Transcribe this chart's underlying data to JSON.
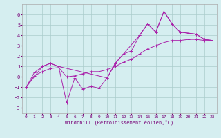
{
  "xlabel": "Windchill (Refroidissement éolien,°C)",
  "ylabel": "",
  "background_color": "#d5eef0",
  "grid_color": "#aacccc",
  "line_color": "#aa22aa",
  "xlim": [
    -0.5,
    23.5
  ],
  "ylim": [
    -3.5,
    7.0
  ],
  "xticks": [
    0,
    1,
    2,
    3,
    4,
    5,
    6,
    7,
    8,
    9,
    10,
    11,
    12,
    13,
    14,
    15,
    16,
    17,
    18,
    19,
    20,
    21,
    22,
    23
  ],
  "yticks": [
    -3,
    -2,
    -1,
    0,
    1,
    2,
    3,
    4,
    5,
    6
  ],
  "line1": {
    "x": [
      0,
      1,
      2,
      3,
      4,
      5,
      6,
      7,
      8,
      9,
      10,
      11,
      12,
      13,
      14,
      15,
      16,
      17,
      18,
      19,
      20,
      21,
      22,
      23
    ],
    "y": [
      -1.0,
      0.4,
      1.0,
      1.3,
      1.0,
      -2.5,
      -0.1,
      -1.2,
      -0.9,
      -1.1,
      -0.1,
      1.3,
      2.2,
      2.5,
      4.0,
      5.1,
      4.3,
      6.3,
      5.1,
      4.3,
      4.2,
      4.1,
      3.6,
      3.5
    ]
  },
  "line2": {
    "x": [
      0,
      2,
      3,
      4,
      10,
      11,
      14,
      15,
      16,
      17,
      18,
      19,
      20,
      21,
      22,
      23
    ],
    "y": [
      -1.0,
      1.0,
      1.3,
      1.0,
      -0.1,
      1.3,
      4.0,
      5.1,
      4.3,
      6.3,
      5.1,
      4.3,
      4.2,
      4.1,
      3.6,
      3.5
    ]
  },
  "line3": {
    "x": [
      0,
      1,
      2,
      3,
      4,
      5,
      6,
      7,
      8,
      9,
      10,
      11,
      12,
      13,
      14,
      15,
      16,
      17,
      18,
      19,
      20,
      21,
      22,
      23
    ],
    "y": [
      -1.0,
      0.1,
      0.5,
      0.8,
      0.9,
      0.0,
      0.1,
      0.3,
      0.5,
      0.5,
      0.7,
      1.0,
      1.4,
      1.7,
      2.2,
      2.7,
      3.0,
      3.3,
      3.5,
      3.5,
      3.6,
      3.6,
      3.5,
      3.5
    ]
  }
}
